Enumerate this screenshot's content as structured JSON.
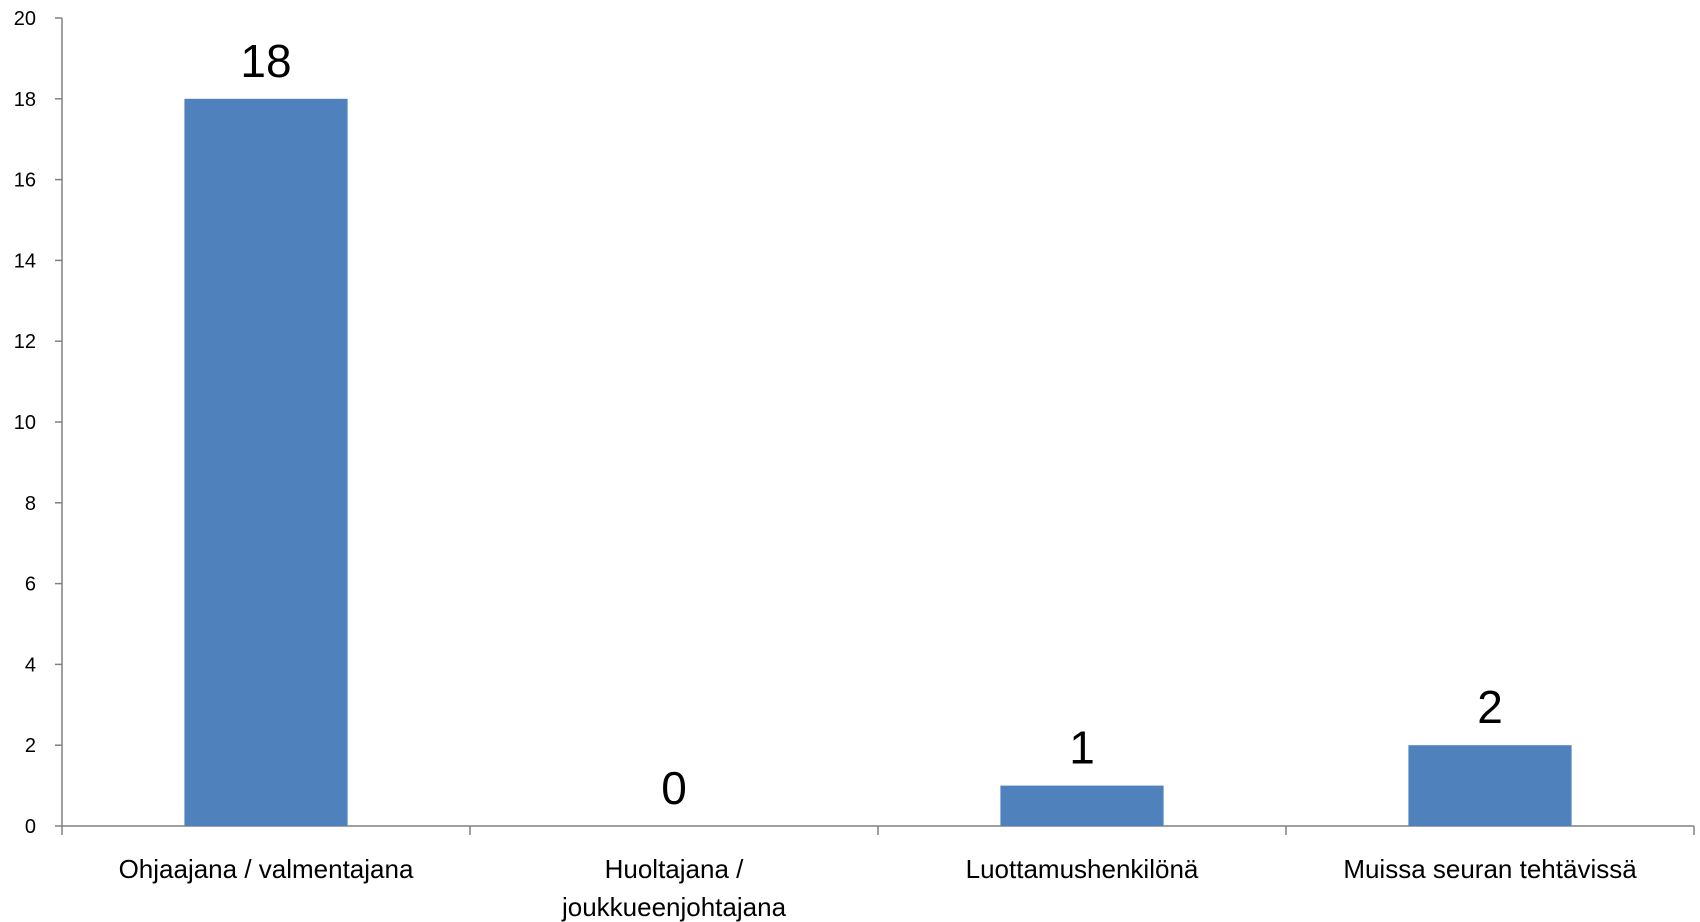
{
  "chart_data": {
    "type": "bar",
    "title": "",
    "xlabel": "",
    "ylabel": "",
    "categories": [
      [
        "Ohjaajana / valmentajana"
      ],
      [
        "Huoltajana /",
        "joukkueenjohtajana"
      ],
      [
        "Luottamushenkilönä"
      ],
      [
        "Muissa seuran tehtävissä"
      ]
    ],
    "values": [
      18,
      0,
      1,
      2
    ],
    "data_labels": [
      "18",
      "0",
      "1",
      "2"
    ],
    "ylim": [
      0,
      20
    ],
    "yticks": [
      0,
      2,
      4,
      6,
      8,
      10,
      12,
      14,
      16,
      18,
      20
    ],
    "grid": false,
    "legend": "none",
    "bar_color": "#4F81BD"
  }
}
